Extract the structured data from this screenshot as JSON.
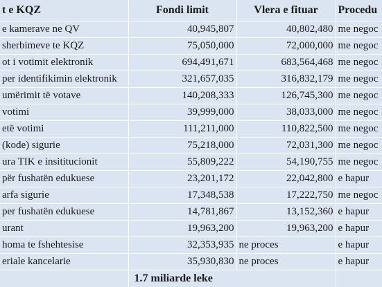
{
  "table": {
    "header": [
      "t e KQZ",
      "Fondi limit",
      "Vlera e fituar",
      "Procedu"
    ],
    "rows": [
      [
        "e kamerave ne QV",
        "40,945,807",
        "40,802,480",
        "me negoc"
      ],
      [
        "sherbimeve te KQZ",
        "75,050,000",
        "72,000,000",
        "me negoc"
      ],
      [
        "ot i votimit elektronik",
        "694,491,671",
        "683,564,468",
        "me negoc"
      ],
      [
        "per identifikimin elektronik",
        "321,657,035",
        "316,832,179",
        "me negoc"
      ],
      [
        "umërimit të votave",
        "140,208,333",
        "126,745,300",
        "me negoc"
      ],
      [
        "votimi",
        "39,999,000",
        "38,033,000",
        "me negoc"
      ],
      [
        "etë votimi",
        "111,211,000",
        "110,822,500",
        "me negoc"
      ],
      [
        "(kode) sigurie",
        "75,218,000",
        "72,031,300",
        "me negoc"
      ],
      [
        "ura TIK e insititucionit",
        "55,809,222",
        "54,190,755",
        "me negoc"
      ],
      [
        "për fushatën edukuese",
        "23,201,172",
        "22,042,800",
        "e hapur"
      ],
      [
        "arfa sigurie",
        "17,348,538",
        "17,222,750",
        "me negoc"
      ],
      [
        "per fushatën edukuese",
        "14,781,867",
        "13,152,360",
        "e hapur"
      ],
      [
        "urant",
        "19,963,200",
        "19,963,200",
        "e hapur"
      ],
      [
        "homa te fshehtesise",
        "32,353,935",
        "ne proces",
        "e hapur"
      ],
      [
        "eriale kancelarie",
        "35,930,830",
        "ne proces",
        "e hapur"
      ]
    ],
    "total": "1.7 miliarde leke"
  }
}
